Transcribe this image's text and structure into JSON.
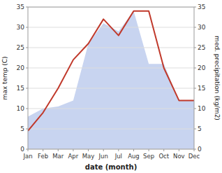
{
  "chart_data": {
    "type": "line",
    "xlabel": "date (month)",
    "ylabel": "max temp (C)",
    "y2label": "med. precipitation (kg/m2)",
    "categories": [
      "Jan",
      "Feb",
      "Mar",
      "Apr",
      "May",
      "Jun",
      "Jul",
      "Aug",
      "Sep",
      "Oct",
      "Nov",
      "Dec"
    ],
    "series": [
      {
        "type": "area",
        "axis": "y2",
        "color": "#c8d4f0",
        "values": [
          8.0,
          10.0,
          10.5,
          12.0,
          26.0,
          31.0,
          29.0,
          34.0,
          21.0,
          21.0,
          12.0,
          12.0
        ]
      },
      {
        "type": "line",
        "color": "#c0392b",
        "values": [
          4.5,
          9.0,
          15.0,
          22.0,
          26.0,
          32.0,
          28.0,
          34.0,
          34.0,
          20.0,
          12.0,
          12.0
        ]
      }
    ],
    "ylim": [
      0,
      35
    ],
    "yticks": [
      0,
      5,
      10,
      15,
      20,
      25,
      30,
      35
    ],
    "y2lim": [
      0,
      35
    ],
    "y2ticks": [
      0,
      5,
      10,
      15,
      20,
      25,
      30,
      35
    ],
    "grid": true
  }
}
